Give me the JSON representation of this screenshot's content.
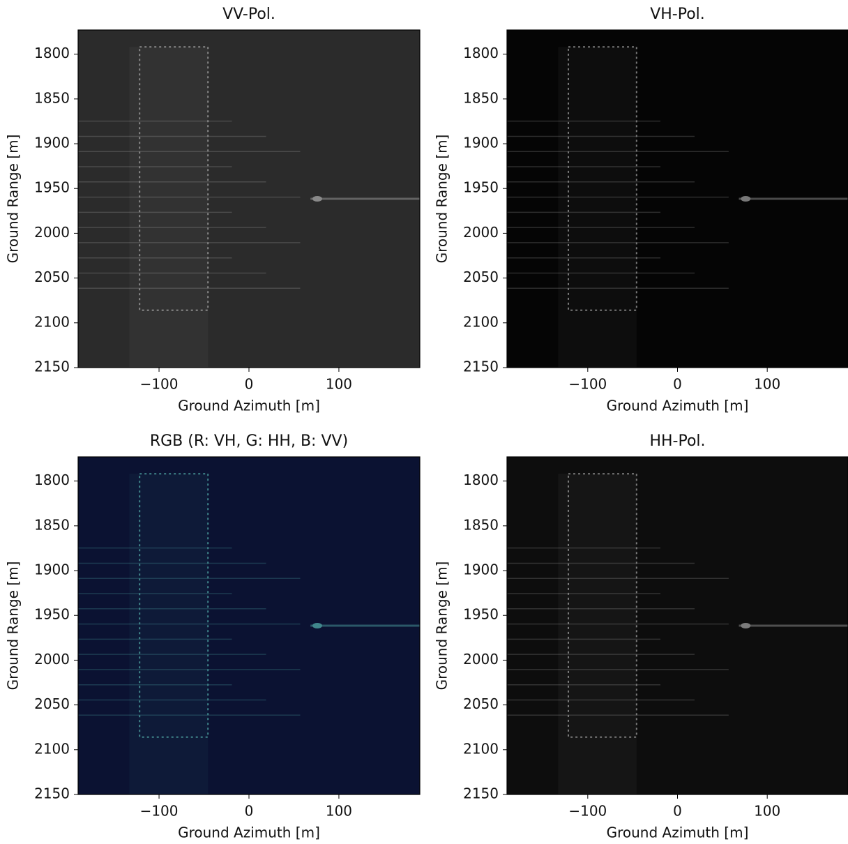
{
  "chart_data": [
    {
      "type": "image",
      "title": "VV-Pol.",
      "xlabel": "Ground Azimuth [m]",
      "ylabel": "Ground Range [m]",
      "color": "#2b2b2b",
      "xlim": [
        -190,
        190
      ],
      "ylim": [
        2150,
        1773
      ],
      "y_inverted": true,
      "xticks": [
        {
          "value": -100,
          "label": "−100"
        },
        0,
        100
      ],
      "yticks": [
        1800,
        1850,
        1900,
        1950,
        2000,
        2050,
        2100,
        2150
      ]
    },
    {
      "type": "image",
      "title": "VH-Pol.",
      "xlabel": "Ground Azimuth [m]",
      "ylabel": "Ground Range [m]",
      "color": "#050505",
      "xlim": [
        -190,
        190
      ],
      "ylim": [
        2150,
        1773
      ],
      "y_inverted": true,
      "xticks": [
        {
          "value": -100,
          "label": "−100"
        },
        0,
        100
      ],
      "yticks": [
        1800,
        1850,
        1900,
        1950,
        2000,
        2050,
        2100,
        2150
      ]
    },
    {
      "type": "image",
      "title": "RGB (R: VH, G: HH, B: VV)",
      "xlabel": "Ground Azimuth [m]",
      "ylabel": "Ground Range [m]",
      "color": "#0b1232",
      "xlim": [
        -190,
        190
      ],
      "ylim": [
        2150,
        1773
      ],
      "y_inverted": true,
      "xticks": [
        {
          "value": -100,
          "label": "−100"
        },
        0,
        100
      ],
      "yticks": [
        1800,
        1850,
        1900,
        1950,
        2000,
        2050,
        2100,
        2150
      ]
    },
    {
      "type": "image",
      "title": "HH-Pol.",
      "xlabel": "Ground Azimuth [m]",
      "ylabel": "Ground Range [m]",
      "color": "#0d0d0d",
      "xlim": [
        -190,
        190
      ],
      "ylim": [
        2150,
        1773
      ],
      "y_inverted": true,
      "xticks": [
        {
          "value": -100,
          "label": "−100"
        },
        0,
        100
      ],
      "yticks": [
        1800,
        1850,
        1900,
        1950,
        2000,
        2050,
        2100,
        2150
      ]
    }
  ]
}
